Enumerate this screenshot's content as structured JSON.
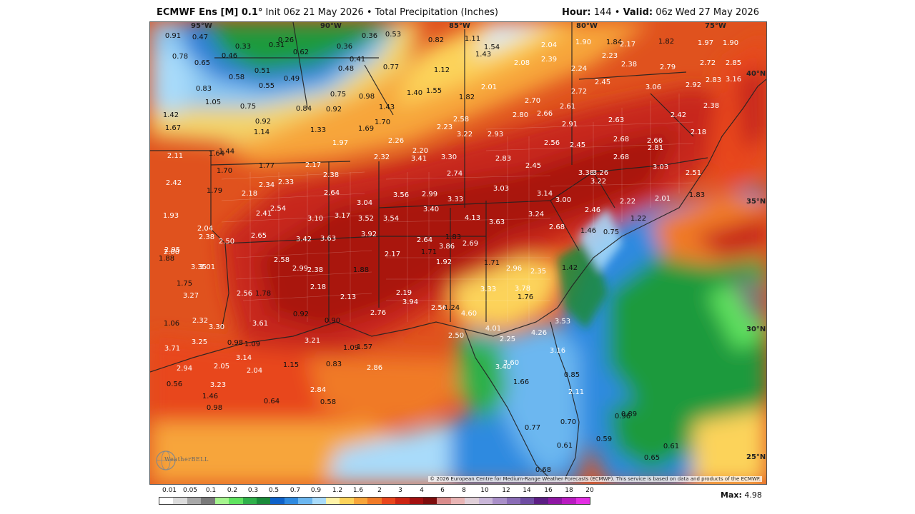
{
  "header": {
    "model_name": "ECMWF Ens [M] 0.1",
    "model_unit": "°",
    "init": "Init 06z 21 May 2026",
    "bullet": "•",
    "product": "Total Precipitation (Inches)",
    "hour_label": "Hour:",
    "hour_value": "144",
    "valid_label": "Valid:",
    "valid_value": "06z Wed 27 May 2026"
  },
  "map": {
    "longitude_labels": [
      "95°W",
      "90°W",
      "85°W",
      "80°W",
      "75°W"
    ],
    "latitude_labels": [
      "40°N",
      "35°N",
      "30°N",
      "25°N"
    ],
    "copyright": "© 2026 European Centre for Medium-Range Weather Forecasts (ECMWF). This service is based on data and products of the ECMWF.",
    "logo_text": "WeatherBELL",
    "values": [
      "0.91",
      "0.47",
      "0.26",
      "0.36",
      "0.53",
      "0.33",
      "0.31",
      "0.62",
      "0.36",
      "0.82",
      "1.11",
      "1.54",
      "2.04",
      "1.90",
      "1.84",
      "2.17",
      "1.82",
      "1.97",
      "1.90",
      "0.78",
      "0.46",
      "0.41",
      "1.43",
      "2.23",
      "2.39",
      "0.65",
      "0.48",
      "0.77",
      "1.12",
      "2.08",
      "2.24",
      "2.38",
      "2.79",
      "2.72",
      "2.85",
      "0.51",
      "0.58",
      "0.49",
      "0.55",
      "0.83",
      "0.75",
      "1.40",
      "1.55",
      "2.01",
      "2.72",
      "2.45",
      "3.06",
      "2.92",
      "2.83",
      "3.16",
      "1.05",
      "0.98",
      "0.75",
      "0.84",
      "0.92",
      "1.43",
      "1.82",
      "2.70",
      "2.61",
      "2.38",
      "1.42",
      "0.92",
      "1.70",
      "2.58",
      "2.80",
      "2.66",
      "2.42",
      "1.67",
      "1.14",
      "1.33",
      "1.69",
      "2.23",
      "3.22",
      "2.93",
      "2.91",
      "2.63",
      "2.18",
      "1.97",
      "2.26",
      "2.56",
      "2.45",
      "2.68",
      "2.66",
      "2.11",
      "1.64",
      "1.44",
      "2.20",
      "2.32",
      "3.41",
      "3.30",
      "2.83",
      "2.68",
      "2.81",
      "1.70",
      "1.77",
      "2.17",
      "2.38",
      "2.74",
      "2.45",
      "3.38",
      "3.26",
      "3.03",
      "2.42",
      "2.34",
      "2.33",
      "2.64",
      "3.04",
      "3.56",
      "2.99",
      "3.03",
      "3.22",
      "2.51",
      "1.79",
      "2.18",
      "3.33",
      "3.14",
      "3.00",
      "2.22",
      "2.01",
      "1.83",
      "1.93",
      "2.54",
      "2.41",
      "3.10",
      "3.17",
      "3.52",
      "3.54",
      "3.40",
      "3.24",
      "2.46",
      "2.04",
      "2.65",
      "3.42",
      "3.63",
      "3.92",
      "4.13",
      "3.63",
      "2.68",
      "1.46",
      "0.75",
      "1.22",
      "2.00",
      "2.38",
      "2.50",
      "2.64",
      "1.83",
      "3.86",
      "2.95",
      "2.58",
      "2.17",
      "1.71",
      "2.69",
      "2.35",
      "3.35",
      "3.01",
      "2.99",
      "2.38",
      "1.88",
      "1.92",
      "1.71",
      "1.88",
      "2.96",
      "1.42",
      "1.75",
      "2.18",
      "3.33",
      "3.78",
      "3.27",
      "2.56",
      "1.78",
      "2.13",
      "2.19",
      "1.76",
      "3.94",
      "2.56",
      "1.24",
      "0.92",
      "2.76",
      "4.60",
      "3.53",
      "2.32",
      "3.61",
      "0.90",
      "1.06",
      "3.30",
      "4.01",
      "4.26",
      "3.25",
      "0.98",
      "1.09",
      "3.21",
      "2.50",
      "2.25",
      "3.71",
      "1.09",
      "1.57",
      "3.14",
      "3.60",
      "3.16",
      "2.94",
      "2.05",
      "2.04",
      "1.15",
      "0.83",
      "2.86",
      "3.40",
      "0.85",
      "0.56",
      "3.23",
      "1.66",
      "2.11",
      "1.46",
      "2.84",
      "0.64",
      "0.58",
      "0.98",
      "0.96",
      "0.89",
      "0.77",
      "0.70",
      "0.61",
      "0.59",
      "0.61",
      "0.65",
      "0.68"
    ]
  },
  "legend": {
    "ticks": [
      "0.01",
      "0.05",
      "0.1",
      "0.2",
      "0.3",
      "0.5",
      "0.7",
      "0.9",
      "1.2",
      "1.6",
      "2",
      "3",
      "4",
      "6",
      "8",
      "10",
      "12",
      "14",
      "16",
      "18",
      "20"
    ],
    "colors": [
      "#ffffff",
      "#dcdcdc",
      "#a8a8a8",
      "#7a7a7a",
      "#a6f58f",
      "#5fe35f",
      "#2fb04a",
      "#1a8a3a",
      "#0e62c9",
      "#2f8ae0",
      "#6cb7f0",
      "#a9dbfa",
      "#fff3a8",
      "#fcd35a",
      "#f7a53a",
      "#f07a27",
      "#e8461c",
      "#cc2412",
      "#a31010",
      "#7d0c0c",
      "#d98c8c",
      "#e8b4b4",
      "#e0cfd8",
      "#c9b6d8",
      "#a98fc8",
      "#8a6cb6",
      "#6e4ca2",
      "#5c1e84",
      "#8e17a3",
      "#b81bc0",
      "#e32ee3"
    ],
    "max_label": "Max:",
    "max_value": "4.98"
  }
}
